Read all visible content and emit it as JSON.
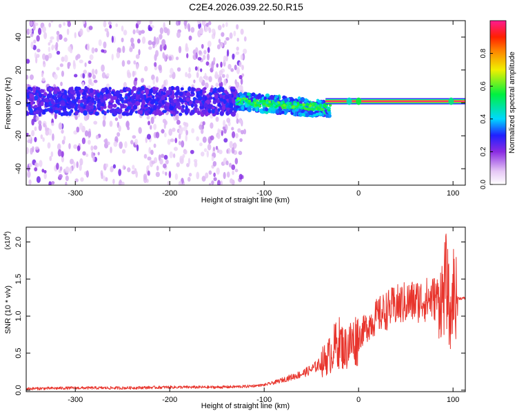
{
  "page": {
    "title": "C2E4.2026.039.22.50.R15"
  },
  "chart_data": [
    {
      "type": "heatmap",
      "xlabel": "Height of straight line (km)",
      "ylabel": "Frequency (Hz)",
      "xlim": [
        -352,
        113
      ],
      "ylim": [
        -50,
        50
      ],
      "xticks": [
        -300,
        -200,
        -100,
        0,
        100
      ],
      "yticks": [
        -40,
        -20,
        0,
        20,
        40
      ],
      "grid": false,
      "colorbar": {
        "label": "Normalized spectral amplitude",
        "range": [
          0,
          1
        ],
        "ticks": [
          0.0,
          0.2,
          0.4,
          0.6,
          0.8
        ]
      },
      "features": {
        "band_center_hz": 1,
        "line_start_km": -35,
        "line_peak_amplitude": 1.0,
        "cluster_range_km": [
          -150,
          -30
        ],
        "scatter_range_km": [
          -352,
          -130
        ]
      }
    },
    {
      "type": "line",
      "xlabel": "Height of straight line (km)",
      "ylabel": "SNR (10 * v/v)",
      "yscale_label": "(x10",
      "yscale_exp": "4",
      "xlim": [
        -352,
        113
      ],
      "ylim": [
        -0.02,
        2.2
      ],
      "xticks": [
        -300,
        -200,
        -100,
        0,
        100
      ],
      "yticks": [
        0.0,
        0.5,
        1.0,
        1.5,
        2.0
      ],
      "grid": false,
      "color": "#e8342c",
      "series": [
        {
          "x": [
            -352,
            -300,
            -250,
            -200,
            -150,
            -120,
            -100,
            -90,
            -80,
            -70,
            -60,
            -50,
            -40,
            -30,
            -25,
            -20,
            -15,
            -10,
            -5,
            0,
            10,
            20,
            30,
            40,
            50,
            60,
            70,
            80,
            85,
            90,
            92,
            95,
            97,
            100,
            103,
            106,
            110,
            113
          ],
          "values": [
            0.02,
            0.03,
            0.03,
            0.04,
            0.04,
            0.05,
            0.07,
            0.1,
            0.14,
            0.18,
            0.22,
            0.28,
            0.36,
            0.48,
            0.6,
            0.65,
            0.55,
            0.62,
            0.66,
            0.72,
            0.88,
            1.0,
            1.08,
            1.14,
            1.18,
            1.2,
            1.22,
            1.24,
            1.25,
            1.26,
            1.5,
            1.3,
            0.8,
            1.4,
            1.25,
            1.24,
            1.24,
            1.24
          ]
        }
      ]
    }
  ]
}
